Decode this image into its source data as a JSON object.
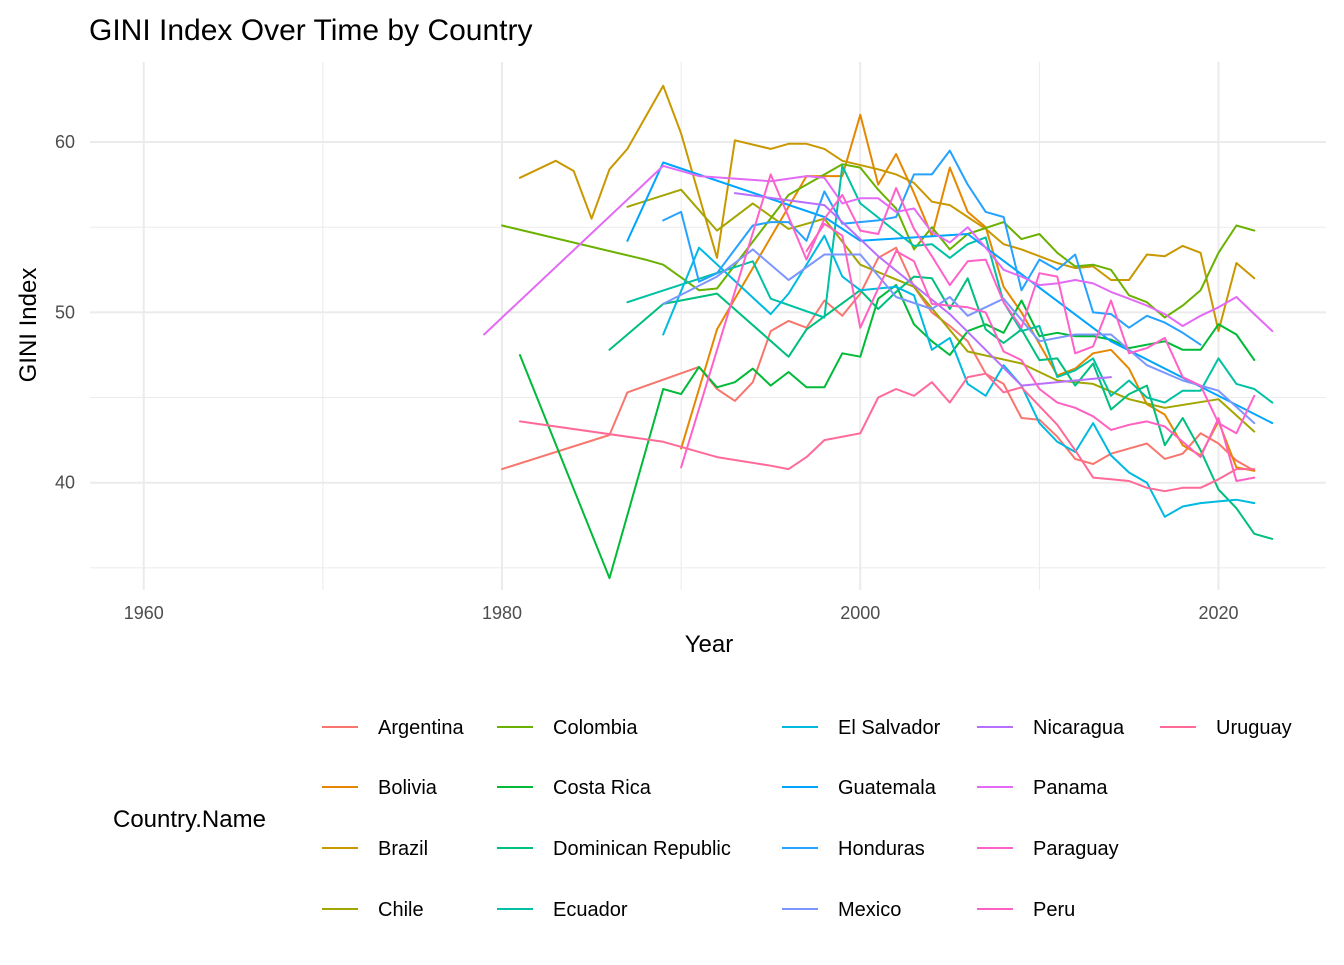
{
  "chart_data": {
    "type": "line",
    "title": "GINI Index Over Time by Country",
    "xlabel": "Year",
    "ylabel": "GINI Index",
    "xlim": [
      1957,
      2026
    ],
    "ylim": [
      33.7,
      64.7
    ],
    "x_ticks": [
      1960,
      1980,
      2000,
      2020
    ],
    "x_minor_ticks": [
      1970,
      1990,
      2010
    ],
    "y_ticks": [
      40,
      50,
      60
    ],
    "y_minor_ticks": [
      35,
      45,
      55
    ],
    "x_tick_labels": [
      "1960",
      "1980",
      "2000",
      "2020"
    ],
    "y_tick_labels": [
      "40",
      "50",
      "60"
    ],
    "grid": true,
    "legend": {
      "title": "Country.Name",
      "position": "bottom",
      "columns": 5
    },
    "series": [
      {
        "name": "Argentina",
        "color": "#F8766D",
        "x": [
          1980,
          1986,
          1987,
          1991,
          1992,
          1993,
          1994,
          1995,
          1996,
          1997,
          1998,
          1999,
          2000,
          2001,
          2002,
          2003,
          2004,
          2005,
          2006,
          2007,
          2008,
          2009,
          2010,
          2011,
          2012,
          2013,
          2014,
          2015,
          2016,
          2017,
          2018,
          2019,
          2020,
          2021,
          2022
        ],
        "y": [
          40.8,
          42.8,
          45.3,
          46.8,
          45.5,
          44.8,
          45.9,
          48.9,
          49.5,
          49.1,
          50.7,
          49.8,
          51.1,
          53.2,
          53.8,
          51.5,
          50.0,
          49.2,
          48.3,
          46.4,
          45.8,
          43.8,
          43.7,
          42.7,
          41.4,
          41.1,
          41.7,
          42.0,
          42.3,
          41.4,
          41.7,
          42.9,
          42.3,
          41.3,
          40.7
        ]
      },
      {
        "name": "Bolivia",
        "color": "#E58700",
        "x": [
          1990,
          1992,
          1997,
          1999,
          2000,
          2001,
          2002,
          2003,
          2004,
          2005,
          2006,
          2007,
          2008,
          2009,
          2011,
          2012,
          2013,
          2014,
          2015,
          2016,
          2017,
          2018,
          2019,
          2020,
          2021,
          2022
        ],
        "y": [
          42.0,
          49.0,
          58.0,
          58.0,
          61.6,
          57.5,
          59.3,
          57.0,
          54.5,
          58.5,
          55.9,
          55.0,
          51.5,
          50.0,
          46.3,
          46.7,
          47.6,
          47.8,
          46.7,
          44.6,
          44.0,
          42.2,
          41.6,
          43.6,
          40.9,
          40.7
        ]
      },
      {
        "name": "Brazil",
        "color": "#C99800",
        "x": [
          1981,
          1983,
          1984,
          1985,
          1986,
          1987,
          1989,
          1990,
          1992,
          1993,
          1995,
          1996,
          1997,
          1998,
          1999,
          2001,
          2002,
          2003,
          2004,
          2005,
          2006,
          2007,
          2008,
          2009,
          2011,
          2012,
          2013,
          2014,
          2015,
          2016,
          2017,
          2018,
          2019,
          2020,
          2021,
          2022
        ],
        "y": [
          57.9,
          58.9,
          58.3,
          55.5,
          58.4,
          59.6,
          63.3,
          60.5,
          53.2,
          60.1,
          59.6,
          59.9,
          59.9,
          59.6,
          58.9,
          58.4,
          58.1,
          57.6,
          56.5,
          56.3,
          55.6,
          54.9,
          54.0,
          53.7,
          52.9,
          52.6,
          52.7,
          51.9,
          51.9,
          53.4,
          53.3,
          53.9,
          53.5,
          48.9,
          52.9,
          52.0
        ]
      },
      {
        "name": "Chile",
        "color": "#A3A500",
        "x": [
          1987,
          1990,
          1992,
          1994,
          1996,
          1998,
          2000,
          2003,
          2006,
          2009,
          2011,
          2013,
          2015,
          2017,
          2020,
          2022
        ],
        "y": [
          56.2,
          57.2,
          54.8,
          56.4,
          54.9,
          55.5,
          52.8,
          51.5,
          47.7,
          47.0,
          46.0,
          45.8,
          44.9,
          44.4,
          44.9,
          43.0
        ]
      },
      {
        "name": "Colombia",
        "color": "#6BB100",
        "x": [
          1980,
          1988,
          1989,
          1991,
          1992,
          1996,
          1999,
          2000,
          2001,
          2002,
          2003,
          2004,
          2005,
          2006,
          2008,
          2009,
          2010,
          2011,
          2012,
          2013,
          2014,
          2015,
          2016,
          2017,
          2018,
          2019,
          2020,
          2021,
          2022
        ],
        "y": [
          55.1,
          53.1,
          52.8,
          51.3,
          51.4,
          56.9,
          58.7,
          58.5,
          57.2,
          56.1,
          53.7,
          55.0,
          53.7,
          54.6,
          55.3,
          54.3,
          54.6,
          53.5,
          52.7,
          52.8,
          52.5,
          51.0,
          50.6,
          49.7,
          50.4,
          51.3,
          53.5,
          55.1,
          54.8
        ]
      },
      {
        "name": "Costa Rica",
        "color": "#00BA38",
        "x": [
          1981,
          1986,
          1989,
          1990,
          1991,
          1992,
          1993,
          1994,
          1995,
          1996,
          1997,
          1998,
          1999,
          2000,
          2001,
          2002,
          2003,
          2004,
          2005,
          2006,
          2007,
          2008,
          2009,
          2010,
          2011,
          2012,
          2013,
          2014,
          2015,
          2016,
          2017,
          2018,
          2019,
          2020,
          2021,
          2022
        ],
        "y": [
          47.5,
          34.4,
          45.5,
          45.2,
          46.8,
          45.6,
          45.9,
          46.7,
          45.7,
          46.5,
          45.6,
          45.6,
          47.6,
          47.4,
          50.8,
          51.6,
          49.3,
          48.3,
          47.5,
          48.9,
          49.3,
          48.8,
          50.7,
          48.6,
          48.8,
          48.6,
          48.6,
          48.4,
          47.9,
          48.1,
          48.3,
          47.8,
          47.8,
          49.3,
          48.7,
          47.2
        ]
      },
      {
        "name": "Dominican Republic",
        "color": "#00BF7D",
        "x": [
          1986,
          1989,
          1992,
          1996,
          1997,
          2000,
          2001,
          2002,
          2003,
          2004,
          2005,
          2006,
          2007,
          2008,
          2009,
          2010,
          2011,
          2012,
          2013,
          2014,
          2015,
          2016,
          2017,
          2018,
          2019,
          2020,
          2021,
          2022,
          2023
        ],
        "y": [
          47.8,
          50.5,
          51.1,
          47.4,
          49.0,
          51.3,
          50.2,
          51.2,
          52.1,
          52.0,
          50.2,
          52.0,
          49.0,
          48.2,
          49.0,
          47.2,
          47.3,
          45.7,
          47.0,
          44.3,
          45.2,
          45.7,
          42.2,
          43.8,
          41.9,
          39.6,
          38.5,
          37.0,
          36.7
        ]
      },
      {
        "name": "Ecuador",
        "color": "#00C1A3",
        "x": [
          1987,
          1994,
          1995,
          1998,
          1999,
          2000,
          2003,
          2004,
          2005,
          2006,
          2007,
          2008,
          2009,
          2010,
          2011,
          2012,
          2013,
          2014,
          2015,
          2016,
          2017,
          2018,
          2019,
          2020,
          2021,
          2022,
          2023
        ],
        "y": [
          50.6,
          53.0,
          50.8,
          49.7,
          58.6,
          56.4,
          53.9,
          54.0,
          53.2,
          54.0,
          54.4,
          50.6,
          48.9,
          49.2,
          46.2,
          46.6,
          47.3,
          45.1,
          46.0,
          45.0,
          44.7,
          45.4,
          45.4,
          47.3,
          45.8,
          45.5,
          44.7
        ]
      },
      {
        "name": "El Salvador",
        "color": "#00BAE0",
        "x": [
          1989,
          1991,
          1995,
          1996,
          1998,
          1999,
          2000,
          2001,
          2002,
          2003,
          2004,
          2005,
          2006,
          2007,
          2008,
          2009,
          2010,
          2011,
          2012,
          2013,
          2014,
          2015,
          2016,
          2017,
          2018,
          2019,
          2020,
          2021,
          2022
        ],
        "y": [
          48.7,
          53.8,
          49.9,
          51.1,
          54.5,
          52.1,
          51.3,
          51.4,
          51.5,
          51.0,
          47.8,
          48.5,
          45.8,
          45.1,
          46.9,
          45.7,
          43.5,
          42.4,
          41.8,
          43.5,
          41.6,
          40.6,
          40.0,
          38.0,
          38.6,
          38.8,
          38.9,
          39.0,
          38.8
        ]
      },
      {
        "name": "Guatemala",
        "color": "#00A5FF",
        "x": [
          1987,
          1989,
          1998,
          2000,
          2006,
          2014,
          2023
        ],
        "y": [
          54.2,
          58.8,
          55.6,
          54.2,
          54.6,
          48.3,
          43.5
        ]
      },
      {
        "name": "Honduras",
        "color": "#25A2FF",
        "x": [
          1989,
          1990,
          1991,
          1992,
          1994,
          1995,
          1996,
          1997,
          1998,
          1999,
          2001,
          2002,
          2003,
          2004,
          2005,
          2006,
          2007,
          2008,
          2009,
          2010,
          2011,
          2012,
          2013,
          2014,
          2015,
          2016,
          2017,
          2018,
          2019
        ],
        "y": [
          55.4,
          55.9,
          51.8,
          52.3,
          55.1,
          55.3,
          55.3,
          54.2,
          57.1,
          55.2,
          55.4,
          55.6,
          58.1,
          58.1,
          59.5,
          57.5,
          55.9,
          55.6,
          51.3,
          53.1,
          52.5,
          53.4,
          50.0,
          49.9,
          49.1,
          49.8,
          49.4,
          48.8,
          48.1
        ]
      },
      {
        "name": "Mexico",
        "color": "#7C96FF",
        "x": [
          1989,
          1992,
          1994,
          1996,
          1998,
          2000,
          2002,
          2004,
          2005,
          2006,
          2008,
          2010,
          2012,
          2014,
          2016,
          2018,
          2020,
          2022
        ],
        "y": [
          50.5,
          52.1,
          53.7,
          51.9,
          53.4,
          53.4,
          50.9,
          50.2,
          50.9,
          49.8,
          50.8,
          48.3,
          48.7,
          48.7,
          46.9,
          46.0,
          45.4,
          43.5
        ]
      },
      {
        "name": "Nicaragua",
        "color": "#B86FFF",
        "x": [
          1993,
          1998,
          2001,
          2005,
          2009,
          2014
        ],
        "y": [
          57.0,
          56.3,
          53.3,
          49.9,
          45.7,
          46.2
        ]
      },
      {
        "name": "Panama",
        "color": "#E36AF5",
        "x": [
          1979,
          1989,
          1991,
          1995,
          1997,
          1998,
          1999,
          2000,
          2001,
          2002,
          2003,
          2004,
          2005,
          2006,
          2007,
          2008,
          2009,
          2010,
          2011,
          2012,
          2013,
          2014,
          2015,
          2016,
          2017,
          2018,
          2019,
          2020,
          2021,
          2022,
          2023
        ],
        "y": [
          48.7,
          58.6,
          58.0,
          57.7,
          58.0,
          57.9,
          56.4,
          56.7,
          56.7,
          55.9,
          56.1,
          54.7,
          54.1,
          55.0,
          53.8,
          52.5,
          52.1,
          51.6,
          51.7,
          51.9,
          51.7,
          51.2,
          50.8,
          50.4,
          49.9,
          49.2,
          49.8,
          50.3,
          50.9,
          49.9,
          48.9
        ]
      },
      {
        "name": "Paraguay",
        "color": "#FF61C9",
        "x": [
          1990,
          1995,
          1997,
          1998,
          1999,
          2000,
          2001,
          2002,
          2003,
          2004,
          2005,
          2006,
          2007,
          2008,
          2009,
          2010,
          2011,
          2012,
          2013,
          2014,
          2015,
          2016,
          2017,
          2018,
          2019,
          2020,
          2021,
          2022
        ],
        "y": [
          40.9,
          58.1,
          53.1,
          55.5,
          56.9,
          54.8,
          54.6,
          57.3,
          54.9,
          53.3,
          51.6,
          53.0,
          53.1,
          50.6,
          49.1,
          52.3,
          52.1,
          47.6,
          48.0,
          50.7,
          47.6,
          47.9,
          48.5,
          46.2,
          45.7,
          43.5,
          42.9,
          45.1
        ]
      },
      {
        "name": "Peru",
        "color": "#FF61C3",
        "x": [
          1997,
          1998,
          1999,
          2000,
          2001,
          2002,
          2003,
          2004,
          2005,
          2006,
          2007,
          2008,
          2009,
          2010,
          2011,
          2012,
          2013,
          2014,
          2015,
          2016,
          2017,
          2018,
          2019,
          2020,
          2021,
          2022
        ],
        "y": [
          53.6,
          55.2,
          54.5,
          49.1,
          51.4,
          53.6,
          53.0,
          50.5,
          50.4,
          50.3,
          50.0,
          47.7,
          47.2,
          45.5,
          44.7,
          44.4,
          43.9,
          43.1,
          43.4,
          43.6,
          43.3,
          42.4,
          41.5,
          43.8,
          40.1,
          40.3
        ]
      },
      {
        "name": "Uruguay",
        "color": "#FF6A98",
        "x": [
          1981,
          1989,
          1992,
          1995,
          1996,
          1997,
          1998,
          2000,
          2001,
          2002,
          2003,
          2004,
          2005,
          2006,
          2007,
          2008,
          2009,
          2010,
          2011,
          2012,
          2013,
          2014,
          2015,
          2016,
          2017,
          2018,
          2019,
          2020,
          2021,
          2022
        ],
        "y": [
          43.6,
          42.4,
          41.5,
          41.0,
          40.8,
          41.5,
          42.5,
          42.9,
          45.0,
          45.5,
          45.1,
          45.9,
          44.7,
          46.2,
          46.4,
          45.3,
          45.6,
          44.5,
          43.4,
          41.9,
          40.3,
          40.2,
          40.1,
          39.7,
          39.5,
          39.7,
          39.7,
          40.2,
          40.8,
          40.8
        ]
      }
    ]
  }
}
